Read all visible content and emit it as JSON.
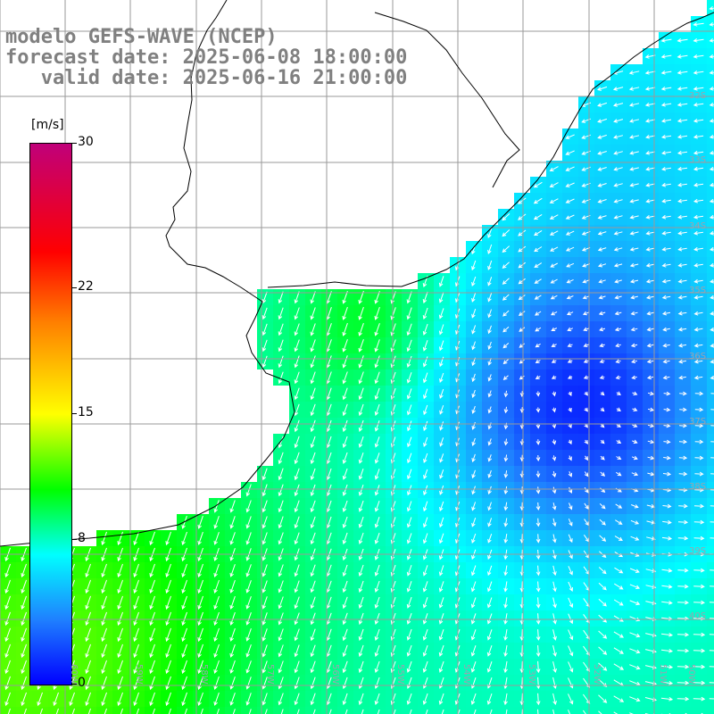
{
  "title": {
    "line1": "modelo GEFS-WAVE (NCEP)",
    "line2": "forecast date: 2025-06-08 18:00:00",
    "line3": "   valid date: 2025-06-16 21:00:00"
  },
  "colorbar": {
    "unit": "[m/s]",
    "ticks": [
      {
        "label": "30",
        "value": 30
      },
      {
        "label": "22",
        "value": 22
      },
      {
        "label": "15",
        "value": 15
      },
      {
        "label": "8",
        "value": 8
      },
      {
        "label": "0",
        "value": 0
      }
    ],
    "colors": [
      "#c0007a",
      "#ff0000",
      "#ff7f00",
      "#ffff00",
      "#00ff00",
      "#00ffff",
      "#1f80ff",
      "#0000ff"
    ]
  },
  "map": {
    "lat_labels": [
      "32S",
      "33S",
      "34S",
      "35S",
      "36S",
      "37S",
      "38S",
      "39S",
      "40S"
    ],
    "lon_labels": [
      "60W",
      "59W",
      "58W",
      "57W",
      "56W",
      "55W",
      "54W",
      "53W",
      "52W",
      "51W",
      "50W"
    ],
    "land_color": "#ffffff",
    "coast_color": "#000000",
    "grid_color": "#9a9a9a",
    "arrow_color": "#ffffff"
  }
}
